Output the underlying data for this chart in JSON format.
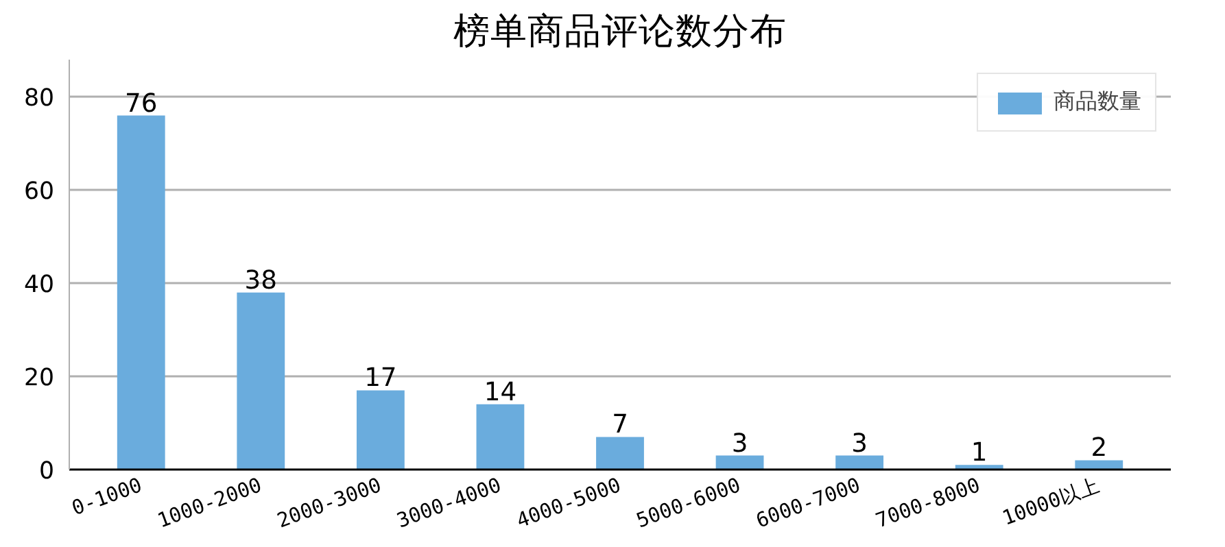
{
  "chart_data": {
    "type": "bar",
    "title": "榜单商品评论数分布",
    "categories": [
      "0-1000",
      "1000-2000",
      "2000-3000",
      "3000-4000",
      "4000-5000",
      "5000-6000",
      "6000-7000",
      "7000-8000",
      "10000以上"
    ],
    "series": [
      {
        "name": "商品数量",
        "color": "#6aacdd",
        "values": [
          76,
          38,
          17,
          14,
          7,
          3,
          3,
          1,
          2
        ]
      }
    ],
    "ylim": [
      0,
      88
    ],
    "yticks": [
      0,
      20,
      40,
      60,
      80
    ],
    "grid": "y",
    "legend": "top right",
    "data_labels": true
  }
}
